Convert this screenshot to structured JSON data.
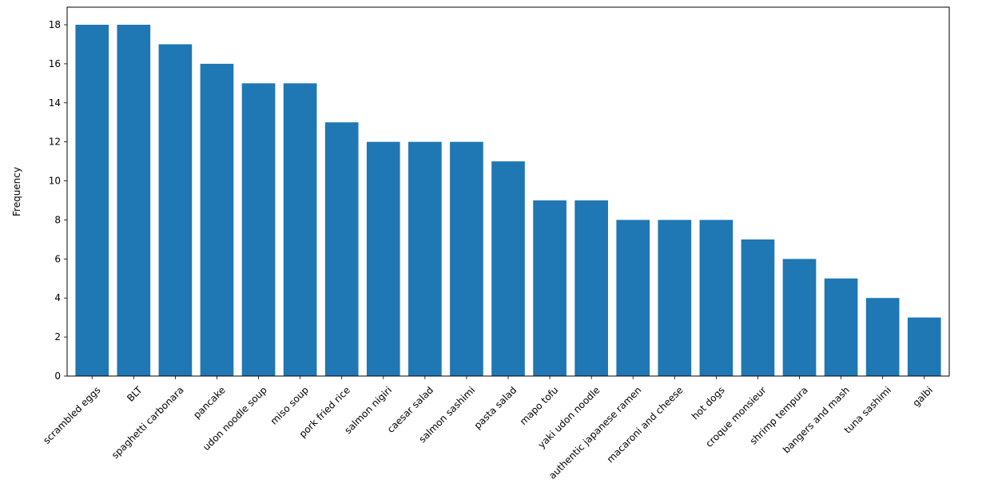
{
  "chart_data": {
    "type": "bar",
    "title": "",
    "xlabel": "",
    "ylabel": "Frequency",
    "ylim": [
      0,
      18.9
    ],
    "yticks": [
      0,
      2,
      4,
      6,
      8,
      10,
      12,
      14,
      16,
      18
    ],
    "grid": false,
    "bar_color": "#1f77b4",
    "categories": [
      "scrambled eggs",
      "BLT",
      "spaghetti carbonara",
      "pancake",
      "udon noodle soup",
      "miso soup",
      "pork fried rice",
      "salmon nigiri",
      "caesar salad",
      "salmon sashimi",
      "pasta salad",
      "mapo tofu",
      "yaki udon noodle",
      "authentic japanese ramen",
      "macaroni and cheese",
      "hot dogs",
      "croque monsieur",
      "shrimp tempura",
      "bangers and mash",
      "tuna sashimi",
      "galbi"
    ],
    "values": [
      18,
      18,
      17,
      16,
      15,
      15,
      13,
      12,
      12,
      12,
      11,
      9,
      9,
      8,
      8,
      8,
      7,
      6,
      5,
      4,
      3
    ]
  }
}
